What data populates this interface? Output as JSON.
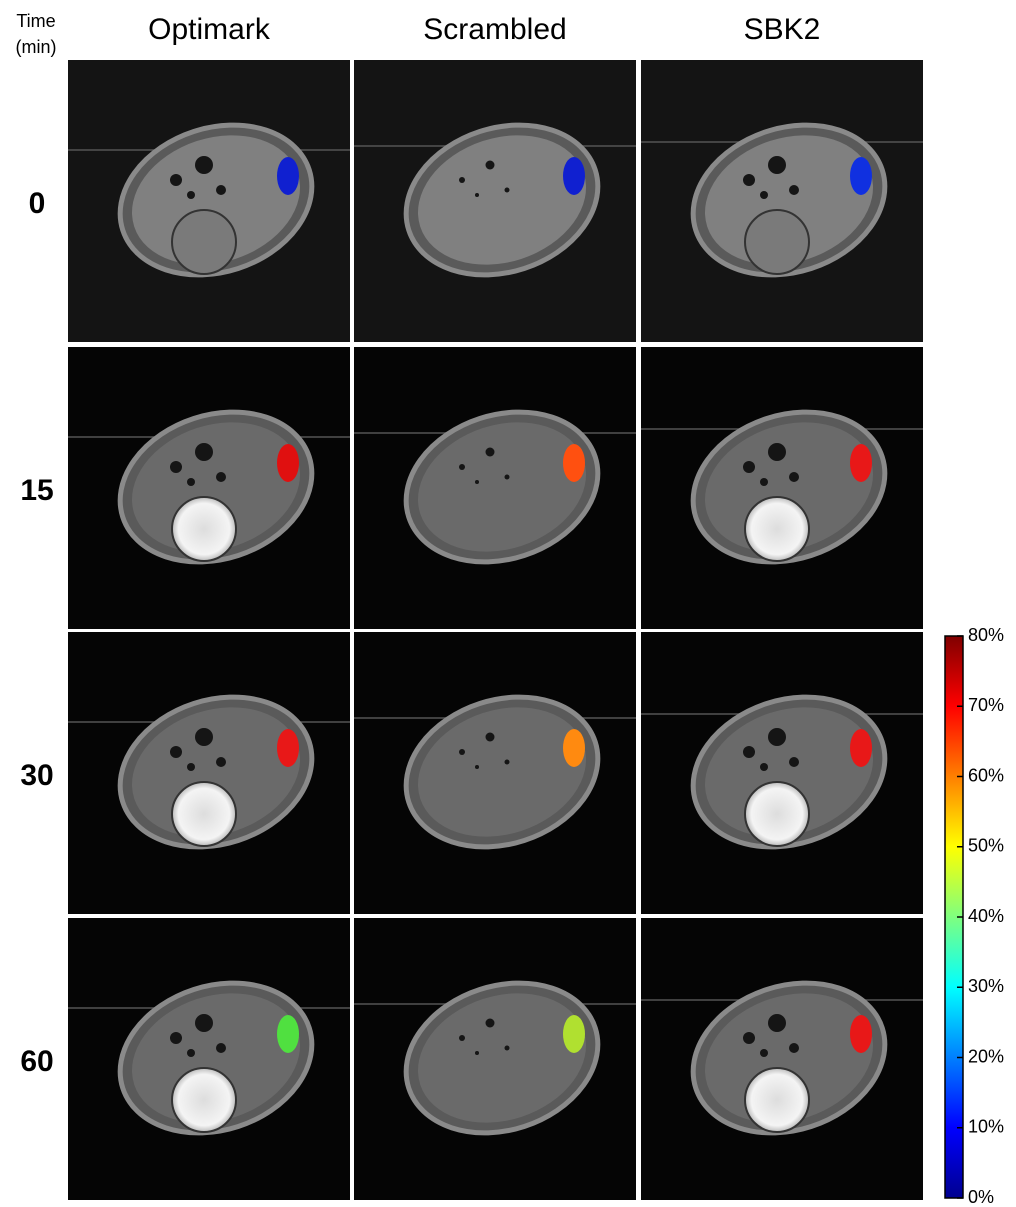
{
  "time_label": [
    "Time",
    "(min)"
  ],
  "columns": [
    "Optimark",
    "Scrambled",
    "SBK2"
  ],
  "rows": [
    "0",
    "15",
    "30",
    "60"
  ],
  "colorbar": {
    "lim": [
      0,
      80
    ],
    "ticks": [
      {
        "value": 0,
        "label": "0%"
      },
      {
        "value": 10,
        "label": "10%"
      },
      {
        "value": 20,
        "label": "20%"
      },
      {
        "value": 30,
        "label": "30%"
      },
      {
        "value": 40,
        "label": "40%"
      },
      {
        "value": 50,
        "label": "50%"
      },
      {
        "value": 60,
        "label": "60%"
      },
      {
        "value": 70,
        "label": "70%"
      },
      {
        "value": 80,
        "label": "80%"
      }
    ]
  }
}
